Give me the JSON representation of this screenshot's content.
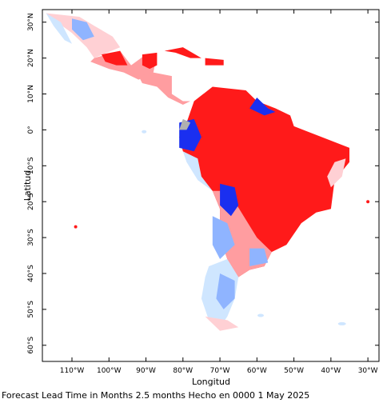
{
  "map": {
    "x_axis": {
      "title": "Longitud",
      "ticks": [
        {
          "lon": -110,
          "label": "110°W"
        },
        {
          "lon": -100,
          "label": "100°W"
        },
        {
          "lon": -90,
          "label": "90°W"
        },
        {
          "lon": -80,
          "label": "80°W"
        },
        {
          "lon": -70,
          "label": "70°W"
        },
        {
          "lon": -60,
          "label": "60°W"
        },
        {
          "lon": -50,
          "label": "50°W"
        },
        {
          "lon": -40,
          "label": "40°W"
        },
        {
          "lon": -30,
          "label": "30°W"
        }
      ],
      "range": [
        -118,
        -27
      ]
    },
    "y_axis": {
      "title": "Latitud",
      "ticks": [
        {
          "lat": 30,
          "label": "30°N"
        },
        {
          "lat": 20,
          "label": "20°N"
        },
        {
          "lat": 10,
          "label": "10°N"
        },
        {
          "lat": 0,
          "label": "0°"
        },
        {
          "lat": -10,
          "label": "10°S"
        },
        {
          "lat": -20,
          "label": "20°S"
        },
        {
          "lat": -30,
          "label": "30°S"
        },
        {
          "lat": -40,
          "label": "40°S"
        },
        {
          "lat": -50,
          "label": "50°S"
        },
        {
          "lat": -60,
          "label": "60°S"
        }
      ],
      "range": [
        -64.5,
        33.5
      ]
    },
    "colors": {
      "strong_red": "#ff1a1a",
      "light_red": "#ff9da0",
      "pale_red": "#ffd0d4",
      "pale_blue": "#cfe6ff",
      "light_blue": "#8fb4ff",
      "strong_blue": "#1a2ff0",
      "gray": "#b0b0b0"
    }
  },
  "caption": "Forecast Lead Time in Months 2.5 months Hecho en 0000 1 May 2025"
}
